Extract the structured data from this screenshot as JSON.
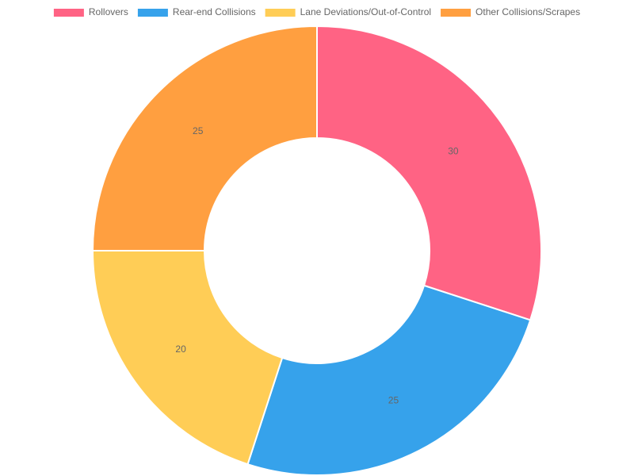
{
  "chart_data": {
    "type": "doughnut",
    "categories": [
      "Rollovers",
      "Rear-end Collisions",
      "Lane Deviations/Out-of-Control",
      "Other Collisions/Scrapes"
    ],
    "values": [
      30,
      25,
      20,
      25
    ],
    "colors": [
      "#ff6384",
      "#36a2eb",
      "#ffcd56",
      "#ff9f40"
    ],
    "legend": "top"
  }
}
